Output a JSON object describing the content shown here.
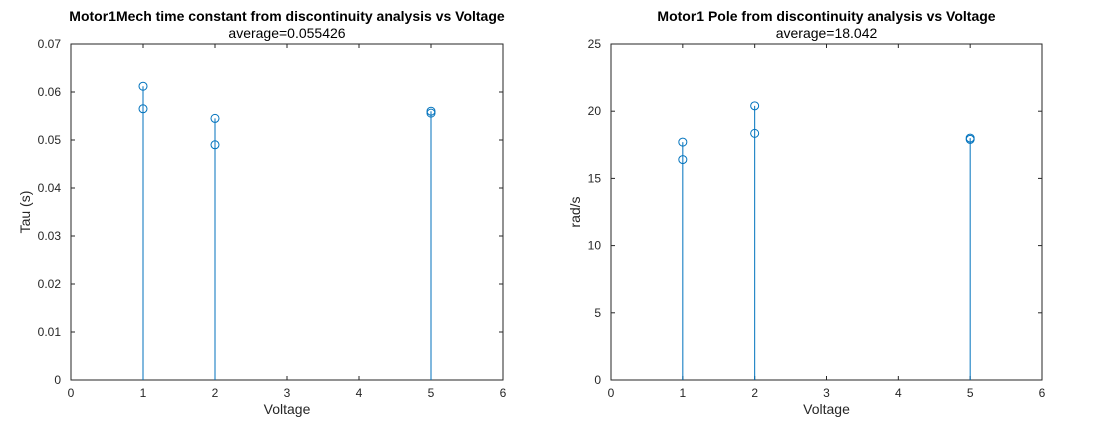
{
  "chart_data": [
    {
      "type": "scatter",
      "title": "Motor1Mech time constant from discontinuity analysis vs Voltage",
      "subtitle": "average=0.055426",
      "xlabel": "Voltage",
      "ylabel": "Tau (s)",
      "xlim": [
        0,
        6
      ],
      "ylim": [
        0,
        0.07
      ],
      "xticks": [
        "0",
        "1",
        "2",
        "3",
        "4",
        "5",
        "6"
      ],
      "yticks": [
        "0",
        "0.01",
        "0.02",
        "0.03",
        "0.04",
        "0.05",
        "0.06",
        "0.07"
      ],
      "grid": false,
      "color": "#0072BD",
      "points": [
        {
          "x": 1,
          "y": 0.0612
        },
        {
          "x": 1,
          "y": 0.0565
        },
        {
          "x": 2,
          "y": 0.0545
        },
        {
          "x": 2,
          "y": 0.049
        },
        {
          "x": 5,
          "y": 0.056
        },
        {
          "x": 5,
          "y": 0.0556
        }
      ]
    },
    {
      "type": "scatter",
      "title": "Motor1 Pole from discontinuity analysis vs Voltage",
      "subtitle": "average=18.042",
      "xlabel": "Voltage",
      "ylabel": "rad/s",
      "xlim": [
        0,
        6
      ],
      "ylim": [
        0,
        25
      ],
      "xticks": [
        "0",
        "1",
        "2",
        "3",
        "4",
        "5",
        "6"
      ],
      "yticks": [
        "0",
        "5",
        "10",
        "15",
        "20",
        "25"
      ],
      "grid": false,
      "color": "#0072BD",
      "points": [
        {
          "x": 1,
          "y": 17.7
        },
        {
          "x": 1,
          "y": 16.4
        },
        {
          "x": 2,
          "y": 20.4
        },
        {
          "x": 2,
          "y": 18.35
        },
        {
          "x": 5,
          "y": 18.0
        },
        {
          "x": 5,
          "y": 17.9
        }
      ]
    }
  ]
}
